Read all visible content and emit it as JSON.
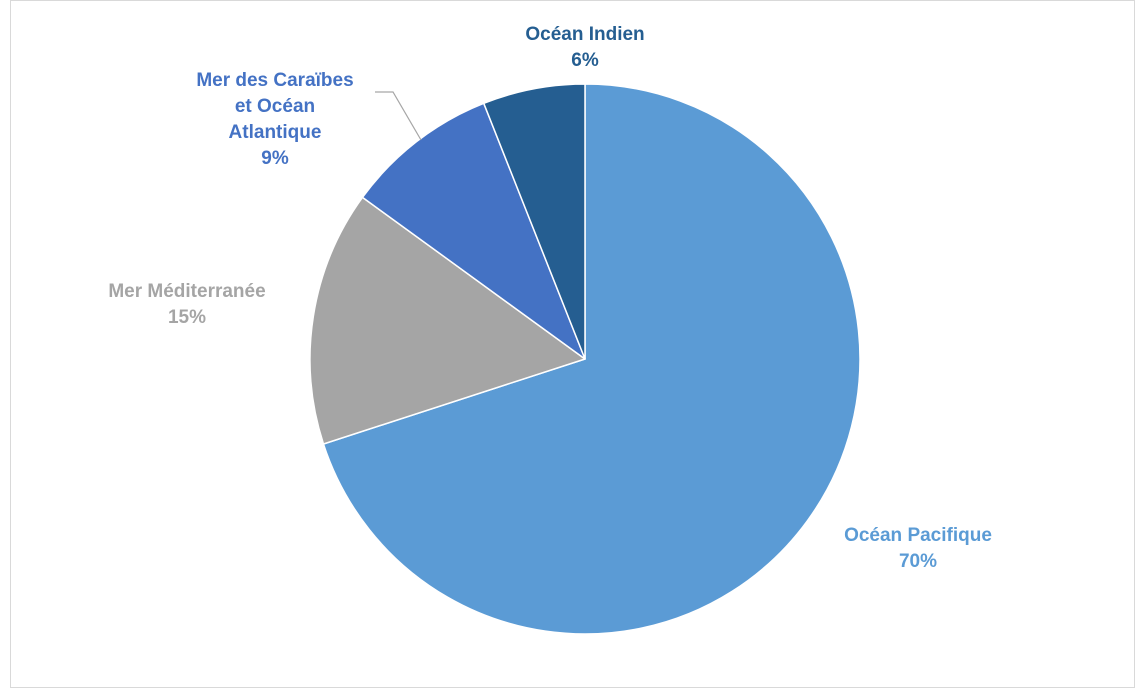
{
  "chart_data": {
    "type": "pie",
    "title": "",
    "start_angle_deg": 0,
    "direction": "clockwise",
    "slices": [
      {
        "label": "Océan Pacifique",
        "value": 70,
        "percent_label": "70%",
        "color": "#5b9bd5",
        "label_lines": [
          "Océan Pacifique"
        ]
      },
      {
        "label": "Mer Méditerranée",
        "value": 15,
        "percent_label": "15%",
        "color": "#a5a5a5",
        "label_lines": [
          "Mer Méditerranée"
        ]
      },
      {
        "label": "Mer des Caraïbes et Océan Atlantique",
        "value": 9,
        "percent_label": "9%",
        "color": "#4472c4",
        "label_lines": [
          "Mer des Caraïbes",
          "et Océan",
          "Atlantique"
        ]
      },
      {
        "label": "Océan Indien",
        "value": 6,
        "percent_label": "6%",
        "color": "#255e91",
        "label_lines": [
          "Océan Indien"
        ]
      }
    ],
    "legend": "none",
    "data_labels": "outside, category name and percentage"
  },
  "colors": {
    "background": "#ffffff",
    "frame_border": "#d9d9d9",
    "leader_line": "#a6a6a6"
  }
}
